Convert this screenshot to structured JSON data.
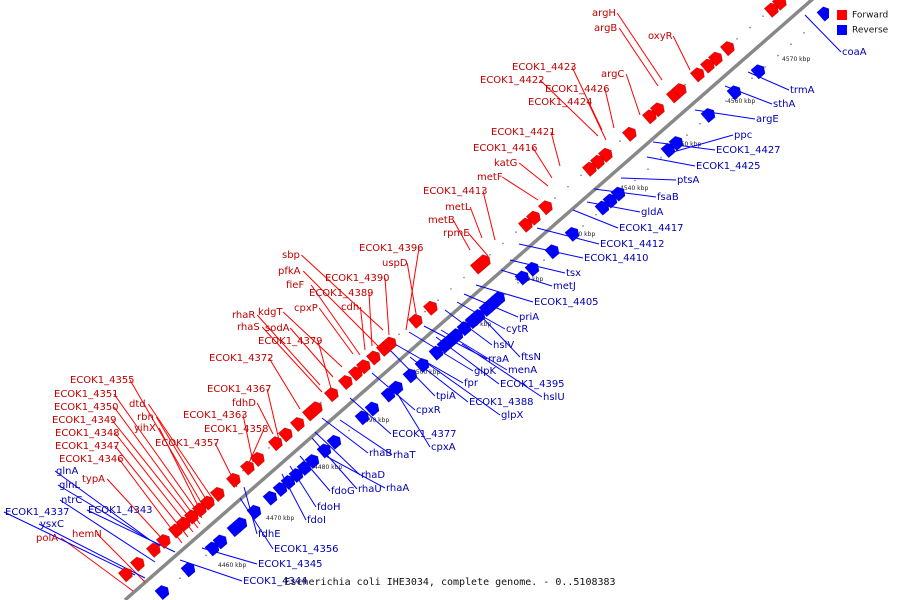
{
  "caption": "Escherichia coli IHE3034, complete genome. - 0..5108383",
  "legend": {
    "forward_label": "Forward",
    "reverse_label": "Reverse",
    "forward_color": "#ff0000",
    "reverse_color": "#0000ff"
  },
  "scale_ticks": [
    "4460 kbp",
    "4470 kbp",
    "4480 kbp",
    "4490 kbp",
    "4500 kbp",
    "4510 kbp",
    "4520 kbp",
    "4530 kbp",
    "4540 kbp",
    "4550 kbp",
    "4560 kbp",
    "4570 kbp"
  ],
  "forward_genes": [
    "argH",
    "argB",
    "oxyR",
    "ECOK1_4423",
    "ECOK1_4422",
    "argC",
    "ECOK1_4426",
    "ECOK1_4424",
    "ECOK1_4421",
    "ECOK1_4416",
    "katG",
    "metF",
    "ECOK1_4413",
    "metL",
    "metB",
    "rpmE",
    "ECOK1_4396",
    "uspD",
    "sbp",
    "pfkA",
    "ECOK1_4390",
    "fieF",
    "ECOK1_4389",
    "cpxP",
    "cdh",
    "kdgT",
    "rhaR",
    "rhaS",
    "sodA",
    "ECOK1_4379",
    "ECOK1_4372",
    "ECOK1_4367",
    "fdhD",
    "ECOK1_4363",
    "ECOK1_4358",
    "ECOK1_4357",
    "ECOK1_4355",
    "ECOK1_4351",
    "dtd",
    "ECOK1_4350",
    "rbn",
    "ECOK1_4349",
    "yihX",
    "ECOK1_4348",
    "ECOK1_4347",
    "ECOK1_4346",
    "typA",
    "hemN",
    "polA"
  ],
  "reverse_genes": [
    "coaA",
    "trmA",
    "sthA",
    "argE",
    "ppc",
    "ECOK1_4427",
    "ECOK1_4425",
    "ptsA",
    "fsaB",
    "gldA",
    "ECOK1_4417",
    "ECOK1_4412",
    "ECOK1_4410",
    "tsx",
    "metJ",
    "ECOK1_4405",
    "priA",
    "cytR",
    "hslV",
    "ftsN",
    "rraA",
    "menA",
    "glpK",
    "ECOK1_4395",
    "fpr",
    "hslU",
    "tpiA",
    "ECOK1_4388",
    "glpX",
    "cpxR",
    "ECOK1_4377",
    "cpxA",
    "rhaB",
    "rhaT",
    "rhaD",
    "rhaU",
    "rhaA",
    "fdoG",
    "fdoH",
    "fdoI",
    "fdhE",
    "ECOK1_4356",
    "ECOK1_4345",
    "ECOK1_4344",
    "glnA",
    "glnL",
    "ntrC",
    "ECOK1_4343",
    "ECOK1_4337",
    "ysxC"
  ]
}
